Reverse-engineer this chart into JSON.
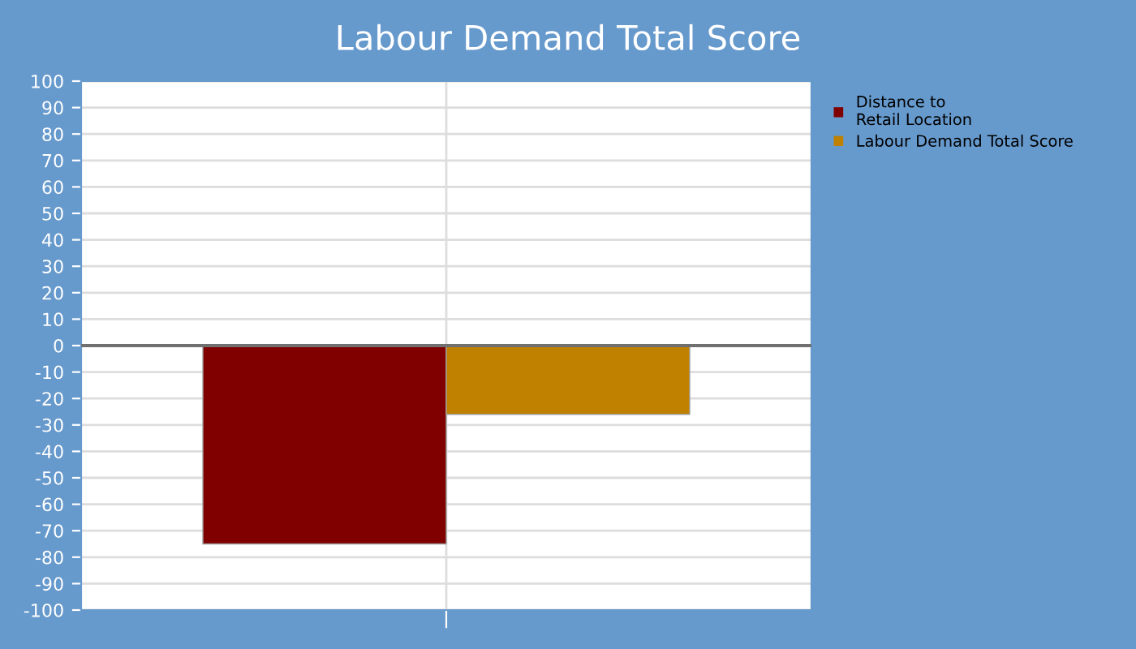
{
  "chart_data": {
    "type": "bar",
    "title": "Labour Demand Total Score",
    "categories": [
      null
    ],
    "series": [
      {
        "name": "Distance to\nRetail Location",
        "color": "#800000",
        "values": [
          -75
        ]
      },
      {
        "name": "Labour Demand Total Score",
        "color": "#c08000",
        "values": [
          -26
        ]
      }
    ],
    "ylim": [
      -100,
      100
    ],
    "yticks": [
      -100,
      -90,
      -80,
      -70,
      -60,
      -50,
      -40,
      -30,
      -20,
      -10,
      0,
      10,
      20,
      30,
      40,
      50,
      60,
      70,
      80,
      90,
      100
    ],
    "ref_lines": [
      {
        "axis": "y",
        "value": 0,
        "color": "#707070"
      }
    ],
    "grid": true,
    "legend": "top right"
  }
}
